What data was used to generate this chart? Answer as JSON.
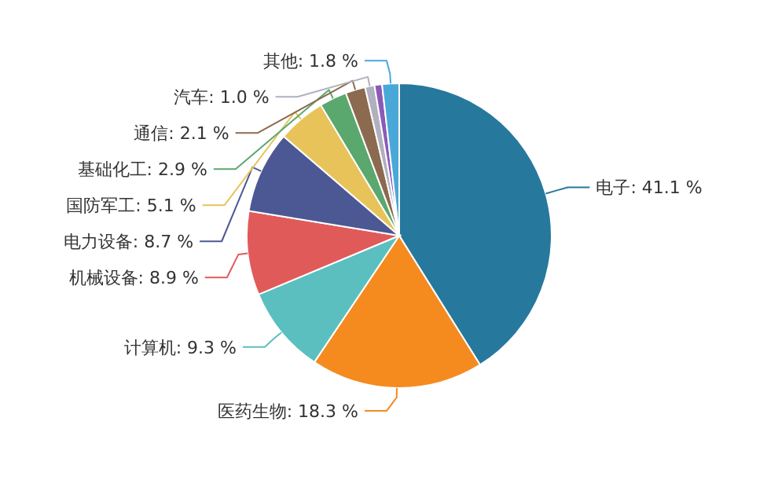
{
  "chart_data": {
    "type": "pie",
    "categories": [
      "电子",
      "医药生物",
      "计算机",
      "机械设备",
      "电力设备",
      "国防军工",
      "基础化工",
      "通信",
      "汽车",
      null,
      "其他"
    ],
    "values": [
      41.1,
      18.3,
      9.3,
      8.9,
      8.7,
      5.1,
      2.9,
      2.1,
      1.0,
      0.8,
      1.8
    ],
    "value_labels": [
      "41.1 %",
      "18.3 %",
      "9.3 %",
      "8.9 %",
      "8.7 %",
      "5.1 %",
      "2.9 %",
      "2.1 %",
      "1.0 %",
      null,
      "1.8 %"
    ],
    "colors": [
      "#27789d",
      "#f58a1f",
      "#5bbfc0",
      "#e05a5a",
      "#4b5894",
      "#e8c35a",
      "#5aa86e",
      "#8c6a4f",
      "#b0b0c0",
      "#8a5ab8",
      "#4aa8d8"
    ]
  }
}
